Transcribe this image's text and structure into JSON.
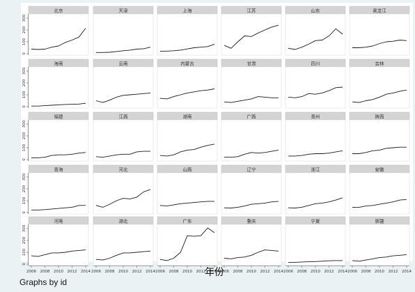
{
  "chart_data": {
    "type": "line",
    "layout": "small-multiples",
    "columns": 6,
    "x": [
      2006,
      2007,
      2008,
      2009,
      2010,
      2011,
      2012,
      2013,
      2014
    ],
    "xticks": [
      2006,
      2008,
      2010,
      2012,
      2014
    ],
    "xtick_labels": [
      "2006",
      "2008",
      "2010",
      "2012",
      "2014"
    ],
    "ylim": [
      0,
      300
    ],
    "yticks": [
      0,
      100,
      200,
      300
    ],
    "ytick_labels": [
      "0",
      "100",
      "200",
      "300"
    ],
    "xlabel": "年份",
    "ylabel": "",
    "note": "Graphs by id",
    "line_color": "#1a1a1a",
    "panels": [
      {
        "name": "北京",
        "values": [
          38,
          35,
          38,
          55,
          65,
          95,
          115,
          140,
          215
        ]
      },
      {
        "name": "天津",
        "values": [
          10,
          10,
          12,
          18,
          25,
          30,
          38,
          42,
          55
        ]
      },
      {
        "name": "上海",
        "values": [
          20,
          22,
          25,
          30,
          40,
          50,
          55,
          60,
          80
        ]
      },
      {
        "name": "江苏",
        "values": [
          70,
          45,
          100,
          150,
          145,
          175,
          200,
          225,
          240
        ]
      },
      {
        "name": "山东",
        "values": [
          45,
          35,
          55,
          80,
          110,
          115,
          150,
          210,
          165
        ]
      },
      {
        "name": "黑龙江",
        "values": [
          50,
          50,
          55,
          65,
          85,
          100,
          105,
          115,
          110
        ]
      },
      {
        "name": "海南",
        "values": [
          5,
          5,
          8,
          12,
          15,
          18,
          20,
          22,
          28
        ]
      },
      {
        "name": "云南",
        "values": [
          50,
          35,
          55,
          80,
          95,
          100,
          105,
          110,
          115
        ]
      },
      {
        "name": "内蒙古",
        "values": [
          70,
          65,
          85,
          100,
          115,
          125,
          135,
          140,
          150
        ]
      },
      {
        "name": "甘肃",
        "values": [
          40,
          35,
          45,
          55,
          65,
          85,
          80,
          75,
          75
        ]
      },
      {
        "name": "四川",
        "values": [
          80,
          75,
          85,
          110,
          105,
          115,
          135,
          160,
          165
        ]
      },
      {
        "name": "吉林",
        "values": [
          40,
          35,
          50,
          60,
          80,
          105,
          115,
          130,
          140
        ]
      },
      {
        "name": "福建",
        "values": [
          15,
          15,
          20,
          35,
          40,
          40,
          45,
          55,
          60
        ]
      },
      {
        "name": "江西",
        "values": [
          25,
          20,
          30,
          40,
          45,
          45,
          65,
          70,
          70
        ]
      },
      {
        "name": "湖南",
        "values": [
          35,
          30,
          40,
          65,
          80,
          85,
          105,
          120,
          130
        ]
      },
      {
        "name": "广西",
        "values": [
          20,
          20,
          25,
          45,
          60,
          55,
          60,
          70,
          80
        ]
      },
      {
        "name": "贵州",
        "values": [
          30,
          30,
          35,
          45,
          50,
          50,
          55,
          65,
          75
        ]
      },
      {
        "name": "陕西",
        "values": [
          50,
          50,
          60,
          75,
          80,
          95,
          100,
          105,
          105
        ]
      },
      {
        "name": "青海",
        "values": [
          22,
          22,
          25,
          30,
          35,
          40,
          45,
          60,
          60
        ]
      },
      {
        "name": "河北",
        "values": [
          60,
          45,
          70,
          100,
          120,
          115,
          130,
          175,
          195
        ]
      },
      {
        "name": "山西",
        "values": [
          60,
          55,
          65,
          75,
          80,
          85,
          90,
          95,
          95
        ]
      },
      {
        "name": "辽宁",
        "values": [
          40,
          38,
          45,
          55,
          70,
          75,
          80,
          90,
          95
        ]
      },
      {
        "name": "浙江",
        "values": [
          40,
          38,
          45,
          60,
          75,
          80,
          90,
          105,
          125
        ]
      },
      {
        "name": "安徽",
        "values": [
          45,
          45,
          55,
          60,
          70,
          80,
          90,
          105,
          110
        ]
      },
      {
        "name": "河南",
        "values": [
          70,
          65,
          80,
          95,
          95,
          100,
          110,
          115,
          120
        ]
      },
      {
        "name": "湖北",
        "values": [
          40,
          35,
          50,
          75,
          95,
          95,
          100,
          105,
          110
        ]
      },
      {
        "name": "广东",
        "values": [
          40,
          30,
          50,
          100,
          240,
          235,
          240,
          305,
          265
        ]
      },
      {
        "name": "重庆",
        "values": [
          50,
          45,
          55,
          60,
          75,
          100,
          120,
          115,
          110
        ]
      },
      {
        "name": "宁夏",
        "values": [
          15,
          15,
          18,
          20,
          22,
          25,
          28,
          30,
          30
        ]
      },
      {
        "name": "新疆",
        "values": [
          30,
          25,
          35,
          45,
          55,
          60,
          70,
          75,
          80
        ]
      }
    ]
  }
}
